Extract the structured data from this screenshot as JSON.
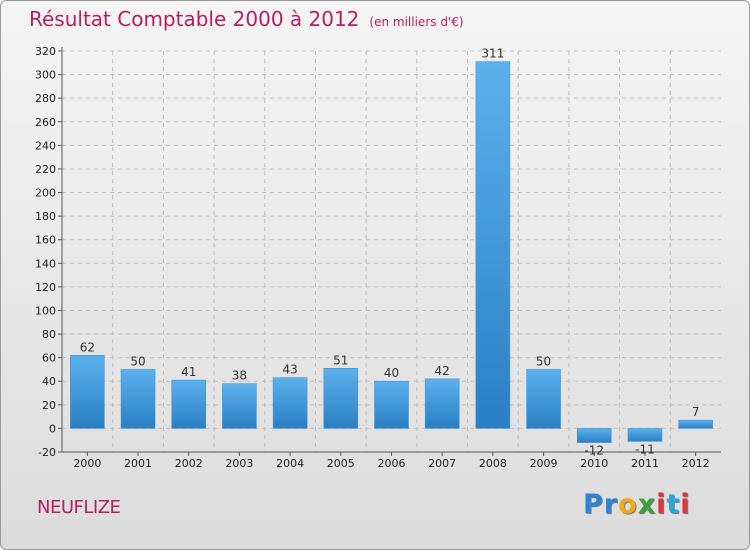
{
  "chart_data": {
    "type": "bar",
    "title": "Résultat Comptable 2000 à 2012",
    "subtitle": "(en milliers d'€)",
    "categories": [
      "2000",
      "2001",
      "2002",
      "2003",
      "2004",
      "2005",
      "2006",
      "2007",
      "2008",
      "2009",
      "2010",
      "2011",
      "2012"
    ],
    "values": [
      62,
      50,
      41,
      38,
      43,
      51,
      40,
      42,
      311,
      50,
      -12,
      -11,
      7
    ],
    "value_labels": [
      "62",
      "50",
      "41",
      "38",
      "43",
      "51",
      "40",
      "42",
      "311",
      "50",
      "-12",
      "-11",
      "7"
    ],
    "ylim": [
      -20,
      320
    ],
    "yticks": [
      -20,
      0,
      20,
      40,
      60,
      80,
      100,
      120,
      140,
      160,
      180,
      200,
      220,
      240,
      260,
      280,
      300,
      320
    ],
    "ytick_labels": [
      "-20",
      "0",
      "20",
      "40",
      "60",
      "80",
      "100",
      "120",
      "140",
      "160",
      "180",
      "200",
      "220",
      "240",
      "260",
      "280",
      "300",
      "320"
    ],
    "grid": true,
    "legend": "none",
    "bar_color_light": "#5cb0ec",
    "bar_color_dark": "#2a7fc4"
  },
  "place_name": "NEUFLIZE",
  "logo": {
    "p1": "P",
    "p2": "r",
    "p3": "o",
    "p4": "x",
    "p5": "i",
    "p6": "t",
    "p7": "i"
  },
  "colors": {
    "accent": "#b4205e",
    "grid": "#bdbdbd"
  }
}
